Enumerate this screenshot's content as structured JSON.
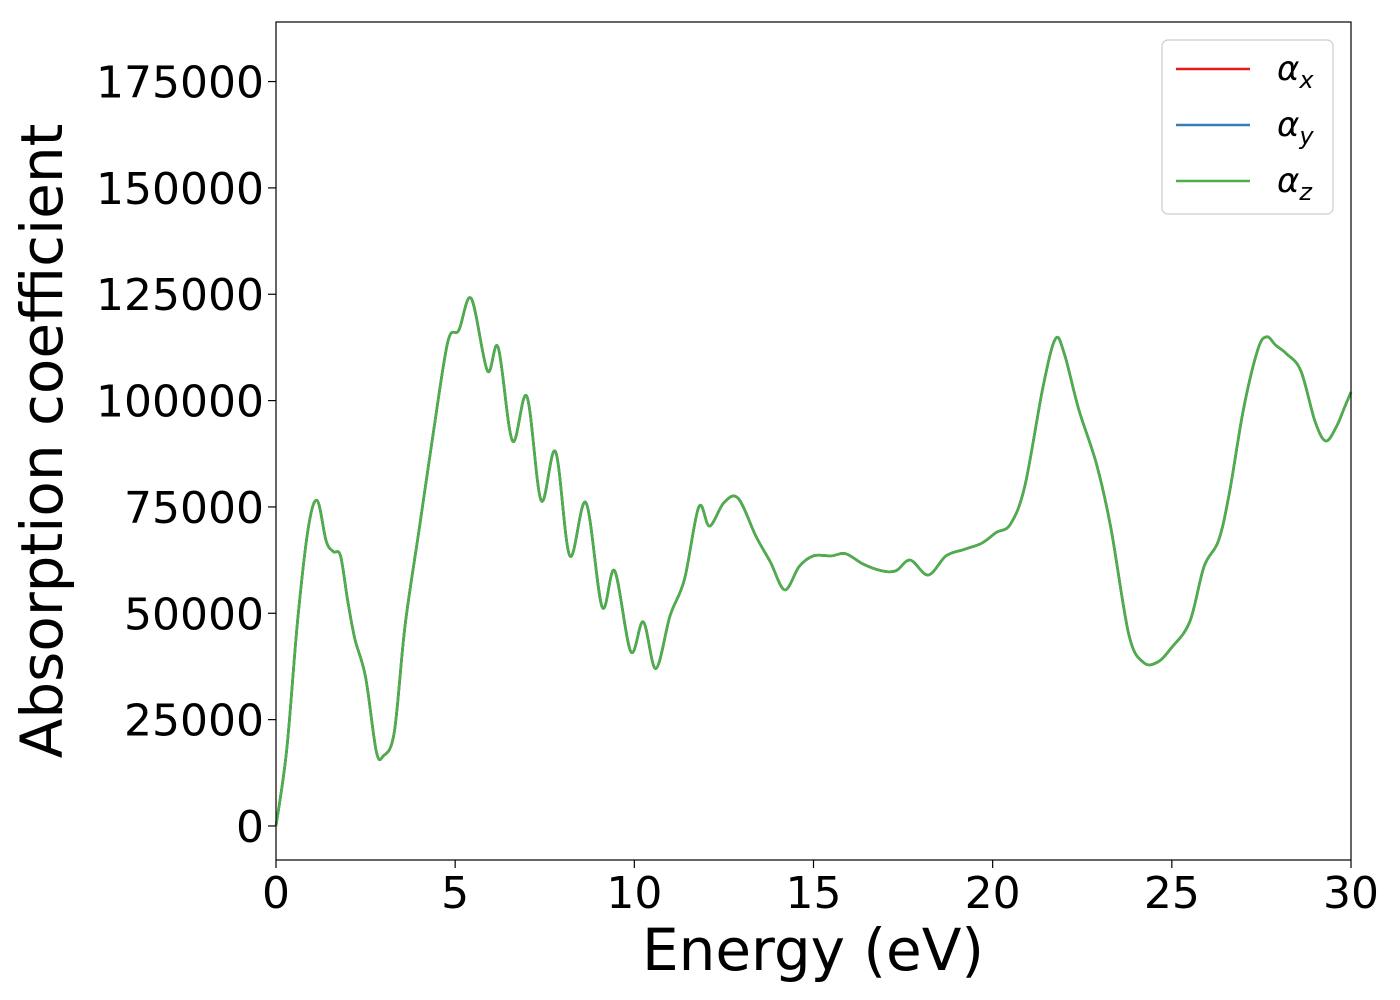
{
  "chart_data": {
    "type": "line",
    "title": "",
    "xlabel": "Energy (eV)",
    "ylabel": "Absorption coefficient",
    "xlim": [
      0,
      30
    ],
    "ylim": [
      -8000,
      189000
    ],
    "xticks": [
      0,
      5,
      10,
      15,
      20,
      25,
      30
    ],
    "xtick_labels": [
      "0",
      "5",
      "10",
      "15",
      "20",
      "25",
      "30"
    ],
    "yticks": [
      0,
      25000,
      50000,
      75000,
      100000,
      125000,
      150000,
      175000
    ],
    "ytick_labels": [
      "0",
      "25000",
      "50000",
      "75000",
      "100000",
      "125000",
      "150000",
      "175000"
    ],
    "grid": false,
    "legend_position": "top-right",
    "x": [
      0,
      0.3,
      0.6,
      0.9,
      1.15,
      1.4,
      1.6,
      1.8,
      2.0,
      2.2,
      2.5,
      2.8,
      3.0,
      3.3,
      3.6,
      4.0,
      4.4,
      4.8,
      5.1,
      5.45,
      5.9,
      6.2,
      6.6,
      7.0,
      7.4,
      7.8,
      8.2,
      8.65,
      9.1,
      9.45,
      9.9,
      10.25,
      10.6,
      11.0,
      11.4,
      11.8,
      12.1,
      12.5,
      12.9,
      13.4,
      13.8,
      14.2,
      14.6,
      15.0,
      15.5,
      15.9,
      16.4,
      16.9,
      17.3,
      17.7,
      18.2,
      18.7,
      19.2,
      19.7,
      20.1,
      20.5,
      20.9,
      21.4,
      21.75,
      22.0,
      22.4,
      22.9,
      23.3,
      23.8,
      24.2,
      24.6,
      25.0,
      25.5,
      25.9,
      26.3,
      26.6,
      27.0,
      27.4,
      27.65,
      27.9,
      28.2,
      28.6,
      29.0,
      29.3,
      29.6,
      29.8,
      30.0
    ],
    "series": [
      {
        "name": "α_x",
        "color": "#e41a1c",
        "values": [
          0,
          18000,
          48000,
          70000,
          76500,
          67000,
          64500,
          63500,
          53000,
          44000,
          35000,
          17500,
          16500,
          22000,
          47000,
          70000,
          93000,
          114000,
          116500,
          124000,
          107000,
          112500,
          90500,
          101000,
          76500,
          88000,
          63500,
          76000,
          51500,
          60000,
          41000,
          48000,
          37000,
          49500,
          58000,
          75000,
          70500,
          76000,
          77000,
          68000,
          62000,
          55500,
          61000,
          63500,
          63500,
          64000,
          61500,
          60000,
          60000,
          62500,
          59000,
          63500,
          65000,
          66500,
          69000,
          71000,
          80000,
          103000,
          114500,
          111000,
          98000,
          85000,
          70000,
          45000,
          38500,
          38500,
          42000,
          48000,
          61000,
          67000,
          78000,
          98000,
          112000,
          115000,
          113000,
          111000,
          107000,
          95000,
          90500,
          94000,
          98000,
          102000
        ]
      },
      {
        "name": "α_y",
        "color": "#377eb8",
        "values": [
          0,
          18000,
          48000,
          70000,
          76500,
          67000,
          64500,
          63500,
          53000,
          44000,
          35000,
          17500,
          16500,
          22000,
          47000,
          70000,
          93000,
          114000,
          116500,
          124000,
          107000,
          112500,
          90500,
          101000,
          76500,
          88000,
          63500,
          76000,
          51500,
          60000,
          41000,
          48000,
          37000,
          49500,
          58000,
          75000,
          70500,
          76000,
          77000,
          68000,
          62000,
          55500,
          61000,
          63500,
          63500,
          64000,
          61500,
          60000,
          60000,
          62500,
          59000,
          63500,
          65000,
          66500,
          69000,
          71000,
          80000,
          103000,
          114500,
          111000,
          98000,
          85000,
          70000,
          45000,
          38500,
          38500,
          42000,
          48000,
          61000,
          67000,
          78000,
          98000,
          112000,
          115000,
          113000,
          111000,
          107000,
          95000,
          90500,
          94000,
          98000,
          102000
        ]
      },
      {
        "name": "α_z",
        "color": "#4daf4a",
        "values": [
          0,
          18000,
          48000,
          70000,
          76500,
          67000,
          64500,
          63500,
          53000,
          44000,
          35000,
          17500,
          16500,
          22000,
          47000,
          70000,
          93000,
          114000,
          116500,
          124000,
          107000,
          112500,
          90500,
          101000,
          76500,
          88000,
          63500,
          76000,
          51500,
          60000,
          41000,
          48000,
          37000,
          49500,
          58000,
          75000,
          70500,
          76000,
          77000,
          68000,
          62000,
          55500,
          61000,
          63500,
          63500,
          64000,
          61500,
          60000,
          60000,
          62500,
          59000,
          63500,
          65000,
          66500,
          69000,
          71000,
          80000,
          103000,
          114500,
          111000,
          98000,
          85000,
          70000,
          45000,
          38500,
          38500,
          42000,
          48000,
          61000,
          67000,
          78000,
          98000,
          112000,
          115000,
          113000,
          111000,
          107000,
          95000,
          90500,
          94000,
          98000,
          102000
        ]
      }
    ],
    "legend": [
      {
        "symbol": "α",
        "sub": "x",
        "color": "#e41a1c"
      },
      {
        "symbol": "α",
        "sub": "y",
        "color": "#377eb8"
      },
      {
        "symbol": "α",
        "sub": "z",
        "color": "#4daf4a"
      }
    ]
  }
}
